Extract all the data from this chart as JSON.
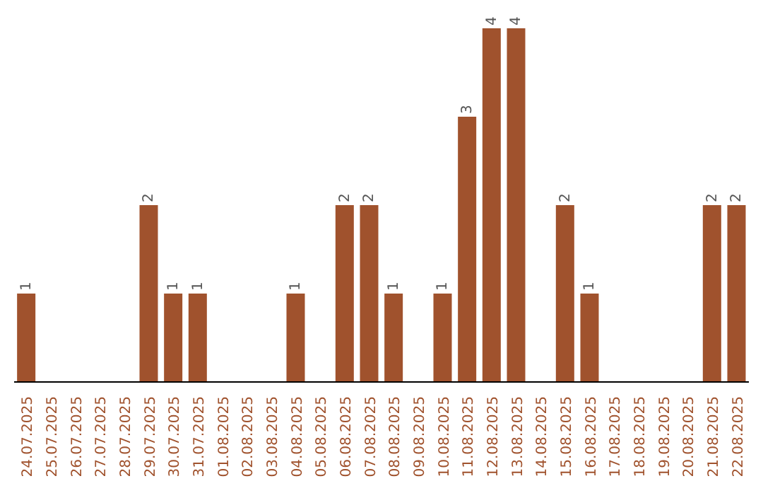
{
  "chart_data": {
    "type": "bar",
    "categories": [
      "24.07.2025",
      "25.07.2025",
      "26.07.2025",
      "27.07.2025",
      "28.07.2025",
      "29.07.2025",
      "30.07.2025",
      "31.07.2025",
      "01.08.2025",
      "02.08.2025",
      "03.08.2025",
      "04.08.2025",
      "05.08.2025",
      "06.08.2025",
      "07.08.2025",
      "08.08.2025",
      "09.08.2025",
      "10.08.2025",
      "11.08.2025",
      "12.08.2025",
      "13.08.2025",
      "14.08.2025",
      "15.08.2025",
      "16.08.2025",
      "17.08.2025",
      "18.08.2025",
      "19.08.2025",
      "20.08.2025",
      "21.08.2025",
      "22.08.2025"
    ],
    "values": [
      1,
      0,
      0,
      0,
      0,
      2,
      1,
      1,
      0,
      0,
      0,
      1,
      0,
      2,
      2,
      1,
      0,
      1,
      3,
      4,
      4,
      0,
      2,
      1,
      0,
      0,
      0,
      0,
      2,
      2
    ],
    "value_labels": [
      "1",
      null,
      null,
      null,
      null,
      "2",
      "1",
      "1",
      null,
      null,
      null,
      "1",
      null,
      "2",
      "2",
      "1",
      null,
      "1",
      "3",
      "4",
      "4",
      null,
      "2",
      "1",
      null,
      null,
      null,
      null,
      "2",
      "2"
    ],
    "color": "#a0522d",
    "tick_labels": "x"
  }
}
